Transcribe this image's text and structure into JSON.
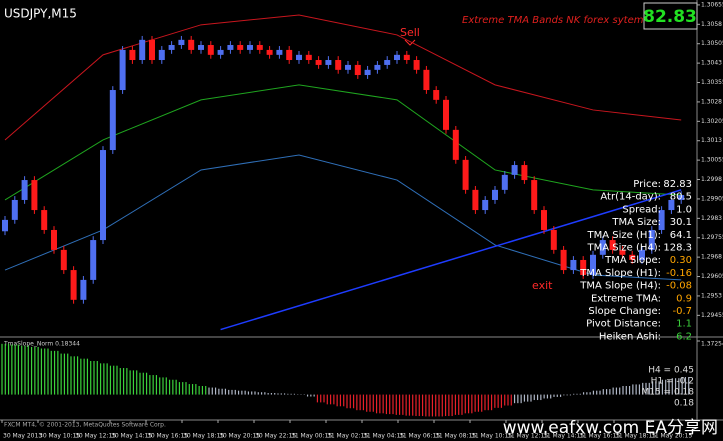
{
  "window": {
    "symbol": "USDJPY,M15",
    "system_title": "Extreme TMA Bands NK forex sytem",
    "price_box": "82.83"
  },
  "chart_data": {
    "type": "candlestick",
    "candles": [
      [
        1.2978,
        1.29839,
        1.29765,
        1.29824
      ],
      [
        1.29824,
        1.29916,
        1.29809,
        1.29901
      ],
      [
        1.29901,
        1.29993,
        1.29886,
        1.29978
      ],
      [
        1.29978,
        1.29993,
        1.29847,
        1.29862
      ],
      [
        1.29862,
        1.29877,
        1.2977,
        1.29785
      ],
      [
        1.29785,
        1.298,
        1.29693,
        1.29708
      ],
      [
        1.29708,
        1.29723,
        1.29615,
        1.2963
      ],
      [
        1.2963,
        1.29645,
        1.295,
        1.29515
      ],
      [
        1.29515,
        1.29607,
        1.295,
        1.29592
      ],
      [
        1.29592,
        1.29761,
        1.29577,
        1.29746
      ],
      [
        1.29746,
        1.30109,
        1.29731,
        1.30094
      ],
      [
        1.30094,
        1.30341,
        1.30079,
        1.30326
      ],
      [
        1.30326,
        1.30496,
        1.30311,
        1.30481
      ],
      [
        1.30481,
        1.30496,
        1.30427,
        1.30442
      ],
      [
        1.30442,
        1.30535,
        1.30427,
        1.3052
      ],
      [
        1.3052,
        1.30535,
        1.30427,
        1.30442
      ],
      [
        1.30442,
        1.30496,
        1.30427,
        1.30481
      ],
      [
        1.30481,
        1.30515,
        1.30466,
        1.305
      ],
      [
        1.305,
        1.30535,
        1.30485,
        1.3052
      ],
      [
        1.3052,
        1.30535,
        1.30466,
        1.30481
      ],
      [
        1.30481,
        1.30515,
        1.30466,
        1.305
      ],
      [
        1.305,
        1.30515,
        1.30447,
        1.30462
      ],
      [
        1.30462,
        1.30496,
        1.30447,
        1.30481
      ],
      [
        1.30481,
        1.30515,
        1.30466,
        1.305
      ],
      [
        1.305,
        1.30515,
        1.30466,
        1.30481
      ],
      [
        1.30481,
        1.30515,
        1.30466,
        1.305
      ],
      [
        1.305,
        1.30515,
        1.30466,
        1.30481
      ],
      [
        1.30481,
        1.30496,
        1.30447,
        1.30462
      ],
      [
        1.30462,
        1.30496,
        1.30447,
        1.30481
      ],
      [
        1.30481,
        1.30496,
        1.30427,
        1.30442
      ],
      [
        1.30442,
        1.30477,
        1.30427,
        1.30462
      ],
      [
        1.30462,
        1.30477,
        1.30427,
        1.30442
      ],
      [
        1.30442,
        1.30457,
        1.30408,
        1.30423
      ],
      [
        1.30423,
        1.30457,
        1.30408,
        1.30442
      ],
      [
        1.30442,
        1.30457,
        1.30389,
        1.30404
      ],
      [
        1.30404,
        1.30438,
        1.30389,
        1.30423
      ],
      [
        1.30423,
        1.30438,
        1.30369,
        1.30384
      ],
      [
        1.30384,
        1.30419,
        1.30369,
        1.30404
      ],
      [
        1.30404,
        1.30438,
        1.30389,
        1.30423
      ],
      [
        1.30423,
        1.30457,
        1.30408,
        1.30442
      ],
      [
        1.30442,
        1.30477,
        1.30427,
        1.30462
      ],
      [
        1.30462,
        1.30477,
        1.30427,
        1.30442
      ],
      [
        1.30442,
        1.30457,
        1.30389,
        1.30404
      ],
      [
        1.30404,
        1.30419,
        1.30311,
        1.30326
      ],
      [
        1.30326,
        1.30341,
        1.30273,
        1.30288
      ],
      [
        1.30288,
        1.30303,
        1.30157,
        1.30172
      ],
      [
        1.30172,
        1.30187,
        1.30041,
        1.30056
      ],
      [
        1.30056,
        1.30071,
        1.29925,
        1.2994
      ],
      [
        1.2994,
        1.29955,
        1.29847,
        1.29862
      ],
      [
        1.29862,
        1.29916,
        1.29847,
        1.29901
      ],
      [
        1.29901,
        1.29955,
        1.29886,
        1.2994
      ],
      [
        1.2994,
        1.30013,
        1.29925,
        1.29998
      ],
      [
        1.29998,
        1.30051,
        1.29983,
        1.30036
      ],
      [
        1.30036,
        1.30051,
        1.29963,
        1.29978
      ],
      [
        1.29978,
        1.29993,
        1.29847,
        1.29862
      ],
      [
        1.29862,
        1.29877,
        1.2977,
        1.29785
      ],
      [
        1.29785,
        1.298,
        1.29693,
        1.29708
      ],
      [
        1.29708,
        1.29723,
        1.29615,
        1.2963
      ],
      [
        1.2963,
        1.29684,
        1.29615,
        1.29669
      ],
      [
        1.29669,
        1.29684,
        1.29596,
        1.29611
      ],
      [
        1.29611,
        1.29704,
        1.29596,
        1.29689
      ],
      [
        1.29689,
        1.29761,
        1.29674,
        1.29746
      ],
      [
        1.29746,
        1.29761,
        1.29693,
        1.29708
      ],
      [
        1.29708,
        1.29723,
        1.29674,
        1.29689
      ],
      [
        1.29689,
        1.29704,
        1.29654,
        1.29669
      ],
      [
        1.29669,
        1.29723,
        1.29654,
        1.29708
      ],
      [
        1.29708,
        1.298,
        1.29693,
        1.29785
      ],
      [
        1.29785,
        1.29877,
        1.2977,
        1.29862
      ],
      [
        1.29862,
        1.29916,
        1.29847,
        1.29901
      ],
      [
        1.29901,
        1.29935,
        1.29886,
        1.2992
      ]
    ],
    "up_color": "#4f6ff0",
    "down_color": "#ff1a1a",
    "bands": [
      {
        "color": "#c8161e",
        "x": [
          0,
          10,
          20,
          30,
          40,
          50,
          60,
          69
        ],
        "values": [
          1.30133,
          1.30462,
          1.30578,
          1.30616,
          1.30539,
          1.30346,
          1.30249,
          1.3021
        ]
      },
      {
        "color": "#1fa51f",
        "x": [
          0,
          10,
          20,
          30,
          40,
          50,
          60,
          69
        ],
        "values": [
          1.29901,
          1.30133,
          1.30288,
          1.30346,
          1.30288,
          1.30017,
          1.2994,
          1.2992
        ]
      },
      {
        "color": "#2f6fb8",
        "x": [
          0,
          10,
          20,
          30,
          40,
          50,
          60,
          69
        ],
        "values": [
          1.2963,
          1.29785,
          1.30017,
          1.30075,
          1.29978,
          1.29727,
          1.29611,
          1.29592
        ]
      },
      {
        "color": "#1e3cff",
        "x": [
          22,
          69
        ],
        "values": [
          1.294,
          1.2994
        ]
      }
    ],
    "ylim": [
      1.29379,
      1.30674
    ],
    "yticks": [
      1.30655,
      1.3058,
      1.30505,
      1.3043,
      1.30355,
      1.3028,
      1.30205,
      1.3013,
      1.30055,
      1.2998,
      1.29905,
      1.2983,
      1.29755,
      1.2968,
      1.29605,
      1.2953,
      1.29455
    ],
    "xlabels": [
      "30 May 2013",
      "30 May 10:15",
      "30 May 12:15",
      "30 May 14:15",
      "30 May 16:15",
      "30 May 18:15",
      "30 May 20:15",
      "30 May 22:15",
      "31 May 00:15",
      "31 May 02:15",
      "31 May 04:15",
      "31 May 06:15",
      "31 May 08:15",
      "31 May 10:15",
      "31 May 12:15",
      "31 May 14:15",
      "31 May 16:15",
      "31 May 18:15",
      "31 May 20:15"
    ],
    "annotations": [
      "Sell",
      "exit"
    ]
  },
  "indicator": {
    "type": "histogram",
    "title": "TmaSlope_Norm 0.18344",
    "values": [
      1.3,
      1.28,
      1.25,
      1.22,
      1.18,
      1.12,
      1.05,
      0.98,
      0.92,
      0.86,
      0.8,
      0.74,
      0.68,
      0.62,
      0.56,
      0.5,
      0.44,
      0.38,
      0.32,
      0.27,
      0.22,
      0.18,
      0.15,
      0.12,
      0.1,
      0.08,
      0.06,
      0.04,
      0.03,
      0.02,
      0.01,
      -0.05,
      -0.2,
      -0.25,
      -0.3,
      -0.35,
      -0.4,
      -0.44,
      -0.48,
      -0.5,
      -0.52,
      -0.54,
      -0.55,
      -0.56,
      -0.56,
      -0.55,
      -0.52,
      -0.48,
      -0.44,
      -0.4,
      -0.34,
      -0.28,
      -0.22,
      -0.18,
      -0.14,
      -0.1,
      -0.06,
      -0.02,
      0.02,
      0.06,
      0.1,
      0.14,
      0.18,
      0.22,
      0.26,
      0.3,
      0.34,
      0.38,
      0.42,
      0.45
    ],
    "colors": [
      "#3cd33c",
      "#3cd33c",
      "#3cd33c",
      "#3cd33c",
      "#3cd33c",
      "#3cd33c",
      "#3cd33c",
      "#3cd33c",
      "#3cd33c",
      "#3cd33c",
      "#3cd33c",
      "#3cd33c",
      "#3cd33c",
      "#3cd33c",
      "#3cd33c",
      "#3cd33c",
      "#3cd33c",
      "#3cd33c",
      "#3cd33c",
      "#3cd33c",
      "#3cd33c",
      "#b0b8c8",
      "#b0b8c8",
      "#b0b8c8",
      "#b0b8c8",
      "#b0b8c8",
      "#b0b8c8",
      "#b0b8c8",
      "#b0b8c8",
      "#b0b8c8",
      "#b0b8c8",
      "#b0b8c8",
      "#e8202a",
      "#e8202a",
      "#e8202a",
      "#e8202a",
      "#e8202a",
      "#e8202a",
      "#e8202a",
      "#e8202a",
      "#e8202a",
      "#e8202a",
      "#e8202a",
      "#e8202a",
      "#e8202a",
      "#e8202a",
      "#e8202a",
      "#e8202a",
      "#e8202a",
      "#e8202a",
      "#e8202a",
      "#e8202a",
      "#b0b8c8",
      "#b0b8c8",
      "#b0b8c8",
      "#b0b8c8",
      "#b0b8c8",
      "#b0b8c8",
      "#b0b8c8",
      "#b0b8c8",
      "#b0b8c8",
      "#b0b8c8",
      "#b0b8c8",
      "#b0b8c8",
      "#b0b8c8",
      "#b0b8c8",
      "#b0b8c8",
      "#b0b8c8",
      "#b0b8c8",
      "#b0b8c8"
    ],
    "ylim": [
      -0.6,
      1.37254
    ],
    "yticks": [
      1.37254
    ],
    "labels": [
      "H4 = 0.45",
      "H1 = -0.2",
      "M15 = 0.18",
      "0.18"
    ]
  },
  "info_panel": [
    {
      "label": "Price:",
      "value": "82.83",
      "color": "#ffffff"
    },
    {
      "label": "Atr(14-day):",
      "value": "80.5",
      "color": "#ffffff"
    },
    {
      "label": "Spread:",
      "value": "1.0",
      "color": "#ffffff"
    },
    {
      "label": "TMA Size:",
      "value": "30.1",
      "color": "#ffffff"
    },
    {
      "label": "TMA Size (H1):",
      "value": "64.1",
      "color": "#ffffff"
    },
    {
      "label": "TMA Size (H4):",
      "value": "128.3",
      "color": "#ffffff"
    },
    {
      "label": "TMA Slope:",
      "value": "0.30",
      "color": "#ffa500"
    },
    {
      "label": "TMA Slope (H1):",
      "value": "-0.16",
      "color": "#ffa500"
    },
    {
      "label": "TMA Slope (H4):",
      "value": "-0.08",
      "color": "#ffa500"
    },
    {
      "label": "Extreme TMA:",
      "value": "0.9",
      "color": "#ffa500"
    },
    {
      "label": "Slope Change:",
      "value": "-0.7",
      "color": "#ffa500"
    },
    {
      "label": "Pivot Distance:",
      "value": "1.1",
      "color": "#3cd33c"
    },
    {
      "label": "Heiken Ashi:",
      "value": "6.2",
      "color": "#3cd33c"
    }
  ],
  "footer": "FXCM MT4, © 2001-2013, MetaQuotes Software Corp.",
  "watermark": "www.eafxw.com  EA分享网"
}
